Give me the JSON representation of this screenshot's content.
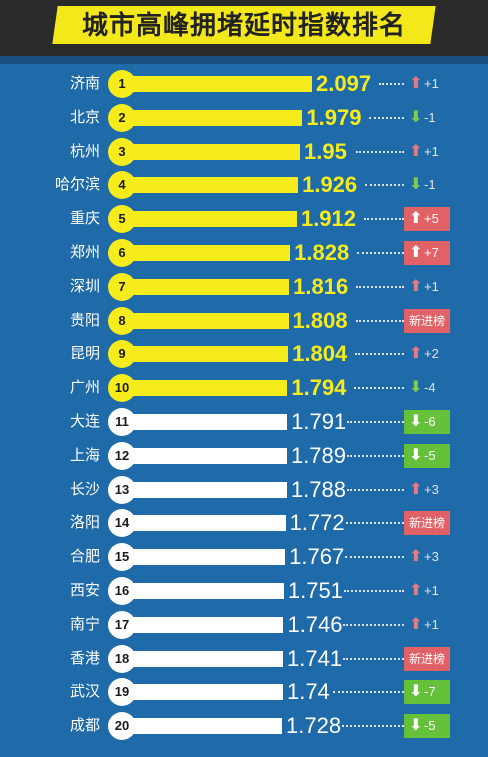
{
  "chart_data": {
    "type": "bar",
    "title": "城市高峰拥堵延时指数排名",
    "categories": [
      "济南",
      "北京",
      "杭州",
      "哈尔滨",
      "重庆",
      "郑州",
      "深圳",
      "贵阳",
      "昆明",
      "广州",
      "大连",
      "上海",
      "长沙",
      "洛阳",
      "合肥",
      "西安",
      "南宁",
      "香港",
      "武汉",
      "成都"
    ],
    "ranks": [
      "1",
      "2",
      "3",
      "4",
      "5",
      "6",
      "7",
      "8",
      "9",
      "10",
      "11",
      "12",
      "13",
      "14",
      "15",
      "16",
      "17",
      "18",
      "19",
      "20"
    ],
    "value_labels": [
      "2.097",
      "1.979",
      "1.95",
      "1.926",
      "1.912",
      "1.828",
      "1.816",
      "1.808",
      "1.804",
      "1.794",
      "1.791",
      "1.789",
      "1.788",
      "1.772",
      "1.767",
      "1.751",
      "1.746",
      "1.741",
      "1.74",
      "1.728"
    ],
    "values": [
      2.097,
      1.979,
      1.95,
      1.926,
      1.912,
      1.828,
      1.816,
      1.808,
      1.804,
      1.794,
      1.791,
      1.789,
      1.788,
      1.772,
      1.767,
      1.751,
      1.746,
      1.741,
      1.74,
      1.728
    ],
    "changes": [
      {
        "dir": "up",
        "text": "+1",
        "boxed": false
      },
      {
        "dir": "down",
        "text": "-1",
        "boxed": false
      },
      {
        "dir": "up",
        "text": "+1",
        "boxed": false
      },
      {
        "dir": "down",
        "text": "-1",
        "boxed": false
      },
      {
        "dir": "up",
        "text": "+5",
        "boxed": true
      },
      {
        "dir": "up",
        "text": "+7",
        "boxed": true
      },
      {
        "dir": "up",
        "text": "+1",
        "boxed": false
      },
      {
        "dir": "new",
        "text": "新进榜",
        "boxed": true
      },
      {
        "dir": "up",
        "text": "+2",
        "boxed": false
      },
      {
        "dir": "down",
        "text": "-4",
        "boxed": false
      },
      {
        "dir": "down",
        "text": "-6",
        "boxed": true
      },
      {
        "dir": "down",
        "text": "-5",
        "boxed": true
      },
      {
        "dir": "up",
        "text": "+3",
        "boxed": false
      },
      {
        "dir": "new",
        "text": "新进榜",
        "boxed": true
      },
      {
        "dir": "up",
        "text": "+3",
        "boxed": false
      },
      {
        "dir": "up",
        "text": "+1",
        "boxed": false
      },
      {
        "dir": "up",
        "text": "+1",
        "boxed": false
      },
      {
        "dir": "new",
        "text": "新进榜",
        "boxed": true
      },
      {
        "dir": "down",
        "text": "-7",
        "boxed": true
      },
      {
        "dir": "down",
        "text": "-5",
        "boxed": true
      }
    ],
    "highlight_top": 10,
    "colors": {
      "background": "#1f6aa8",
      "top_bar": "#f6ec1c",
      "other_bar": "#ffffff",
      "up": "#e06166",
      "down": "#66c13a"
    },
    "grid": false,
    "legend": "none"
  }
}
